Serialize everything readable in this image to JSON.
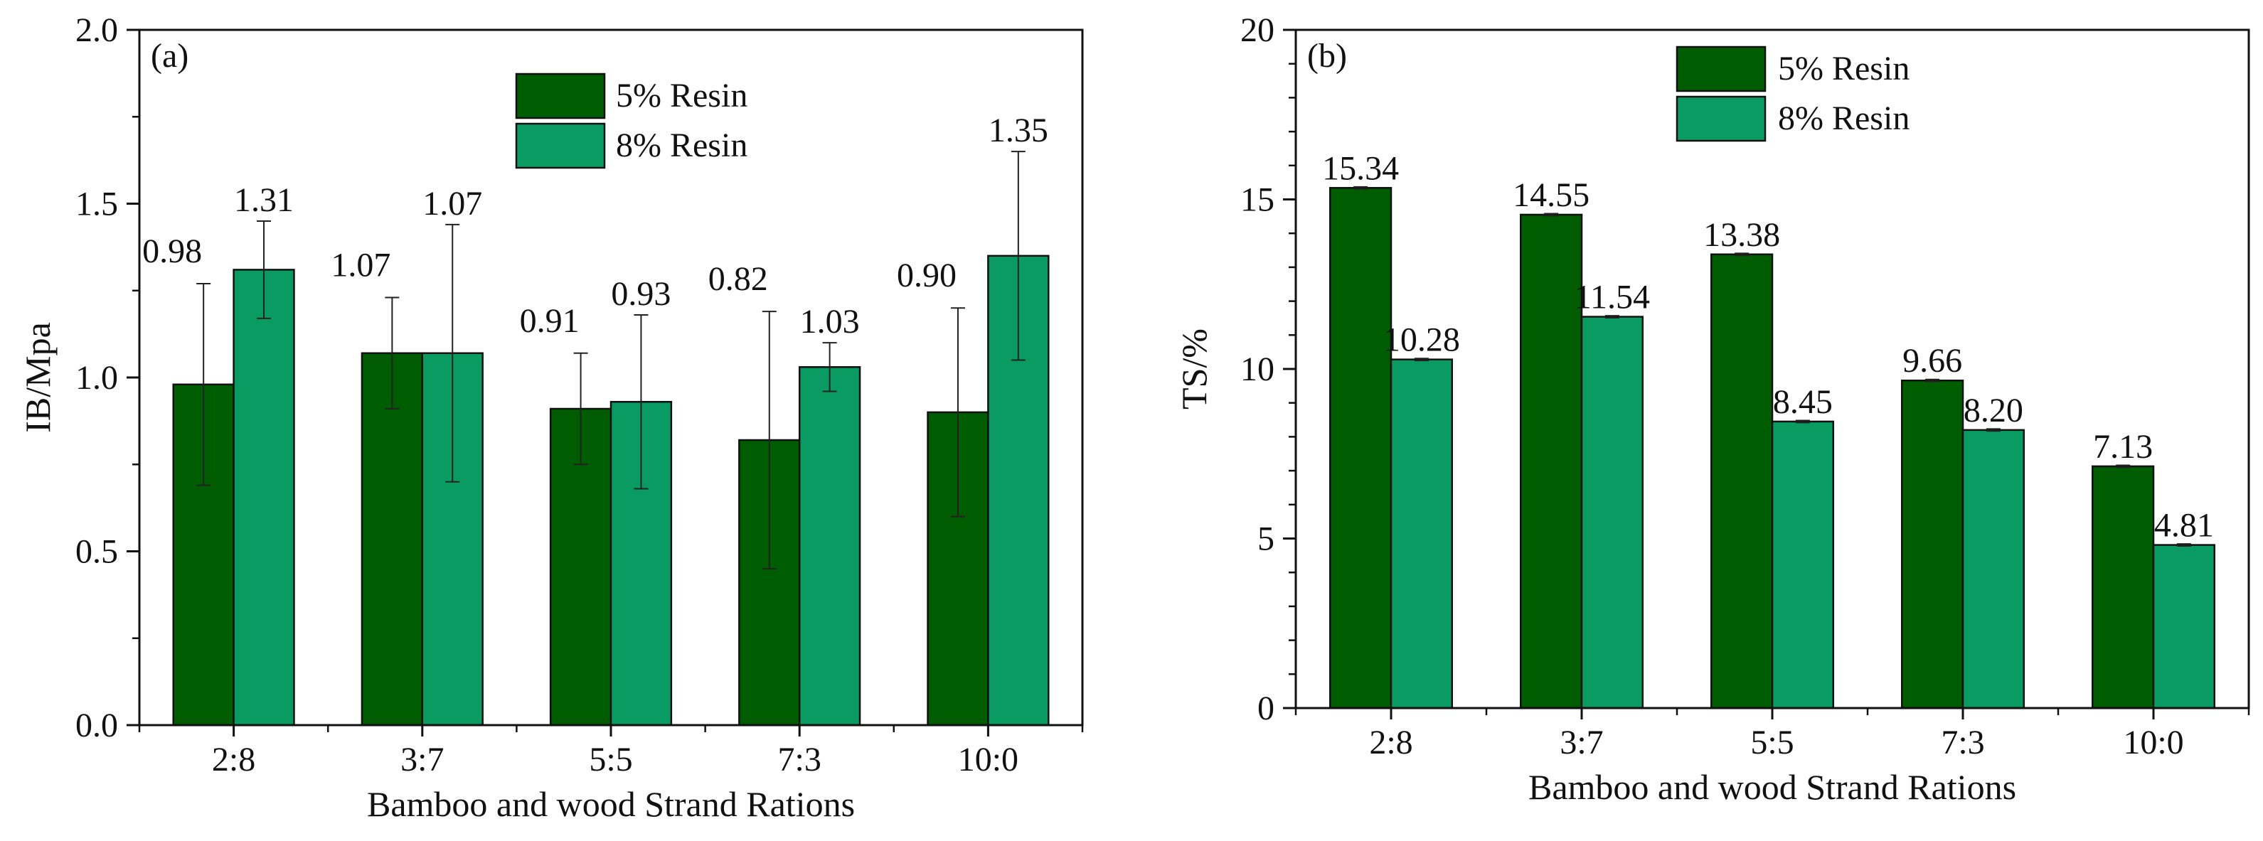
{
  "chart_data": [
    {
      "type": "bar",
      "panel_label": "(a)",
      "title": "",
      "xlabel": "Bamboo and wood Strand Rations",
      "ylabel": "IB/Mpa",
      "categories": [
        "2:8",
        "3:7",
        "5:5",
        "7:3",
        "10:0"
      ],
      "ylim": [
        0,
        2.0
      ],
      "yticks": [
        "0.0",
        "0.5",
        "1.0",
        "1.5",
        "2.0"
      ],
      "legend_position": "top-center",
      "series": [
        {
          "name": "5% Resin",
          "color": "#005c00",
          "values": [
            0.98,
            1.07,
            0.91,
            0.82,
            0.9
          ],
          "errors": [
            0.29,
            0.16,
            0.16,
            0.37,
            0.3
          ],
          "labels": [
            "0.98",
            "1.07",
            "0.91",
            "0.82",
            "0.90"
          ]
        },
        {
          "name": "8% Resin",
          "color": "#0a9b62",
          "values": [
            1.31,
            1.07,
            0.93,
            1.03,
            1.35
          ],
          "errors": [
            0.14,
            0.37,
            0.25,
            0.07,
            0.3
          ],
          "labels": [
            "1.31",
            "1.07",
            "0.93",
            "1.03",
            "1.35"
          ]
        }
      ]
    },
    {
      "type": "bar",
      "panel_label": "(b)",
      "title": "",
      "xlabel": "Bamboo and wood Strand Rations",
      "ylabel": "TS/%",
      "categories": [
        "2:8",
        "3:7",
        "5:5",
        "7:3",
        "10:0"
      ],
      "ylim": [
        0,
        20
      ],
      "yticks": [
        "0",
        "5",
        "10",
        "15",
        "20"
      ],
      "legend_position": "top-center",
      "series": [
        {
          "name": "5% Resin",
          "color": "#005c00",
          "values": [
            15.34,
            14.55,
            13.38,
            9.66,
            7.13
          ],
          "errors": [
            0.03,
            0.03,
            0.03,
            0.03,
            0.03
          ],
          "labels": [
            "15.34",
            "14.55",
            "13.38",
            "9.66",
            "7.13"
          ]
        },
        {
          "name": "8% Resin",
          "color": "#0a9b62",
          "values": [
            10.28,
            11.54,
            8.45,
            8.2,
            4.81
          ],
          "errors": [
            0.03,
            0.03,
            0.03,
            0.03,
            0.03
          ],
          "labels": [
            "10.28",
            "11.54",
            "8.45",
            "8.20",
            "4.81"
          ]
        }
      ]
    }
  ]
}
